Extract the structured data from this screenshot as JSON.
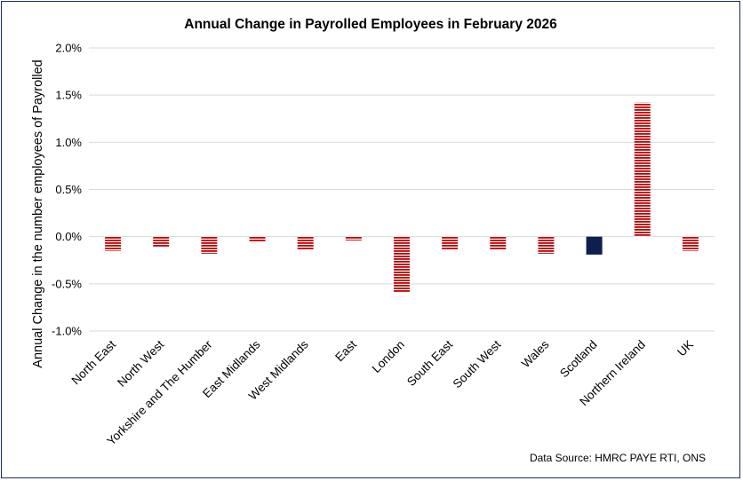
{
  "chart_data": {
    "type": "bar",
    "title": "Annual Change in Payrolled Employees in February 2026",
    "ylabel": "Annual Change in the number employees of Payrolled",
    "xlabel": "",
    "source": "Data Source: HMRC PAYE RTI, ONS",
    "ylim": [
      -1.0,
      2.0
    ],
    "yticks": [
      2.0,
      1.5,
      1.0,
      0.5,
      0.0,
      -0.5,
      -1.0
    ],
    "ytick_labels": [
      "2.0%",
      "1.5%",
      "1.0%",
      "0.5%",
      "0.0%",
      "-0.5%",
      "-1.0%"
    ],
    "grid": true,
    "categories": [
      "North East",
      "North West",
      "Yorkshire and The Humber",
      "East Midlands",
      "West Midlands",
      "East",
      "London",
      "South East",
      "South West",
      "Wales",
      "Scotland",
      "Northern Ireland",
      "UK"
    ],
    "values": [
      -0.15,
      -0.11,
      -0.18,
      -0.05,
      -0.14,
      -0.04,
      -0.59,
      -0.14,
      -0.14,
      -0.18,
      -0.19,
      1.42,
      -0.15
    ],
    "bar_colors": [
      "#c00000",
      "#c00000",
      "#c00000",
      "#c00000",
      "#c00000",
      "#c00000",
      "#c00000",
      "#c00000",
      "#c00000",
      "#c00000",
      "#0d1f4f",
      "#c00000",
      "#c00000"
    ],
    "highlight_category": "Scotland",
    "bar_styles": [
      "hatched",
      "hatched",
      "hatched",
      "hatched",
      "hatched",
      "hatched",
      "hatched",
      "hatched",
      "hatched",
      "hatched",
      "solid",
      "hatched",
      "hatched"
    ]
  }
}
